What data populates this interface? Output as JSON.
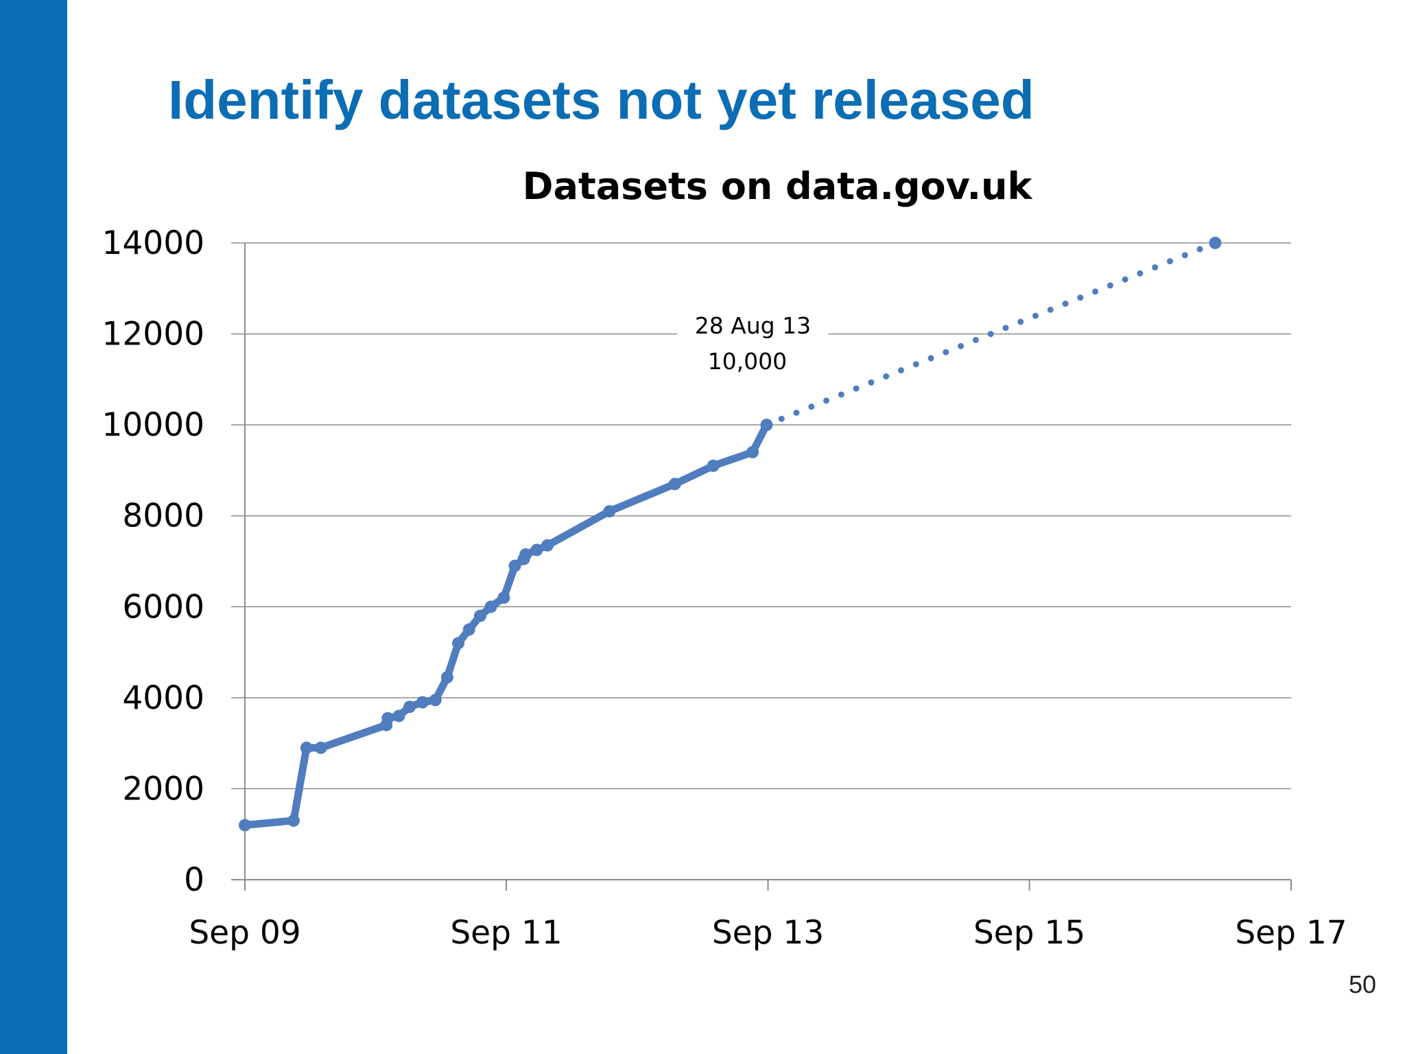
{
  "slide": {
    "title": "Identify datasets not yet released",
    "page_number": "50"
  },
  "colors": {
    "brand_blue": "#0b6db3",
    "series_line": "#4f7dbe",
    "gridline": "#8c8c8c"
  },
  "chart_data": {
    "type": "line",
    "title": "Datasets on data.gov.uk",
    "xlabel": "",
    "ylabel": "",
    "x_axis_type": "date",
    "xlim": [
      "2009-09-01",
      "2017-09-01"
    ],
    "ylim": [
      0,
      14000
    ],
    "grid": true,
    "legend": "none",
    "x_ticks": [
      {
        "date": "2009-09-01",
        "label": "Sep 09"
      },
      {
        "date": "2011-09-01",
        "label": "Sep 11"
      },
      {
        "date": "2013-09-01",
        "label": "Sep 13"
      },
      {
        "date": "2015-09-01",
        "label": "Sep 15"
      },
      {
        "date": "2017-09-01",
        "label": "Sep 17"
      }
    ],
    "y_ticks": [
      0,
      2000,
      4000,
      6000,
      8000,
      10000,
      12000,
      14000
    ],
    "series": [
      {
        "style": "solid",
        "points": [
          {
            "x": "2009-09-01",
            "y": 1200
          },
          {
            "x": "2010-01-15",
            "y": 1300
          },
          {
            "x": "2010-02-20",
            "y": 2900
          },
          {
            "x": "2010-04-01",
            "y": 2900
          },
          {
            "x": "2010-10-01",
            "y": 3400
          },
          {
            "x": "2010-10-05",
            "y": 3550
          },
          {
            "x": "2010-11-05",
            "y": 3600
          },
          {
            "x": "2010-12-05",
            "y": 3800
          },
          {
            "x": "2011-01-10",
            "y": 3900
          },
          {
            "x": "2011-02-15",
            "y": 3950
          },
          {
            "x": "2011-03-20",
            "y": 4450
          },
          {
            "x": "2011-04-20",
            "y": 5200
          },
          {
            "x": "2011-05-20",
            "y": 5500
          },
          {
            "x": "2011-06-20",
            "y": 5800
          },
          {
            "x": "2011-07-20",
            "y": 6000
          },
          {
            "x": "2011-08-25",
            "y": 6200
          },
          {
            "x": "2011-09-25",
            "y": 6900
          },
          {
            "x": "2011-10-20",
            "y": 7050
          },
          {
            "x": "2011-10-25",
            "y": 7150
          },
          {
            "x": "2011-11-25",
            "y": 7250
          },
          {
            "x": "2011-12-25",
            "y": 7350
          },
          {
            "x": "2012-06-15",
            "y": 8100
          },
          {
            "x": "2012-12-15",
            "y": 8700
          },
          {
            "x": "2013-04-01",
            "y": 9100
          },
          {
            "x": "2013-07-20",
            "y": 9400
          },
          {
            "x": "2013-08-28",
            "y": 10000
          }
        ]
      },
      {
        "style": "dotted",
        "points": [
          {
            "x": "2013-08-28",
            "y": 10000
          },
          {
            "x": "2017-02-01",
            "y": 14000
          }
        ]
      }
    ],
    "annotations": [
      {
        "lines": [
          "28 Aug 13",
          "10,000"
        ],
        "x": "2013-08-28",
        "y": 10000
      }
    ]
  }
}
